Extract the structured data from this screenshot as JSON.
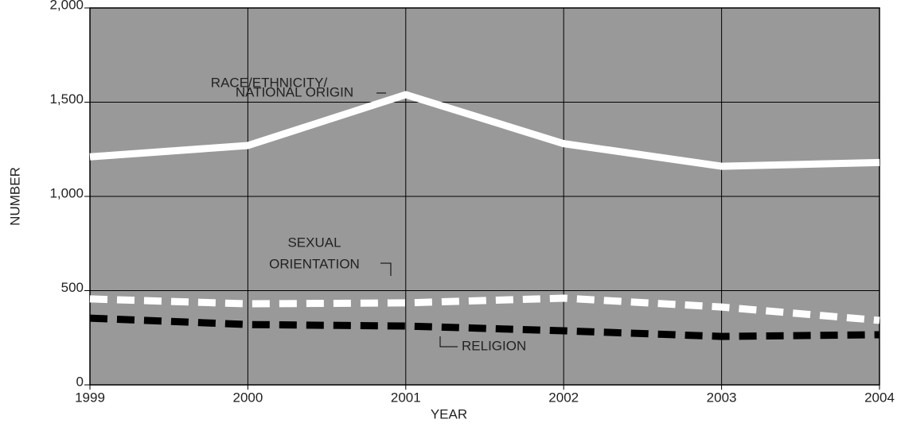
{
  "chart_data": {
    "type": "line",
    "x_label": "YEAR",
    "y_label": "NUMBER",
    "x": [
      1999,
      2000,
      2001,
      2002,
      2003,
      2004
    ],
    "xlim": [
      1999,
      2004
    ],
    "xticks": [
      1999,
      2000,
      2001,
      2002,
      2003,
      2004
    ],
    "ylim": [
      0,
      2000
    ],
    "yticks": [
      0,
      500,
      {
        "value": 1000,
        "label": "1,000"
      },
      {
        "value": 1500,
        "label": "1,500"
      },
      {
        "value": 2000,
        "label": "2,000"
      }
    ],
    "grid": true,
    "background": "#999999",
    "series": [
      {
        "label": [
          "RACE/ETHNICITY/",
          "NATIONAL ORIGIN"
        ],
        "color": "#ffffff",
        "style": "solid",
        "values": [
          1210,
          1270,
          1540,
          1280,
          1160,
          1180
        ]
      },
      {
        "label": [
          "SEXUAL",
          "ORIENTATION"
        ],
        "color": "#ffffff",
        "style": "dashed",
        "values": [
          456,
          430,
          435,
          460,
          413,
          342
        ]
      },
      {
        "label": [
          "RELIGION"
        ],
        "color": "#000000",
        "style": "dashed",
        "values": [
          354,
          320,
          312,
          287,
          257,
          266
        ]
      }
    ]
  }
}
